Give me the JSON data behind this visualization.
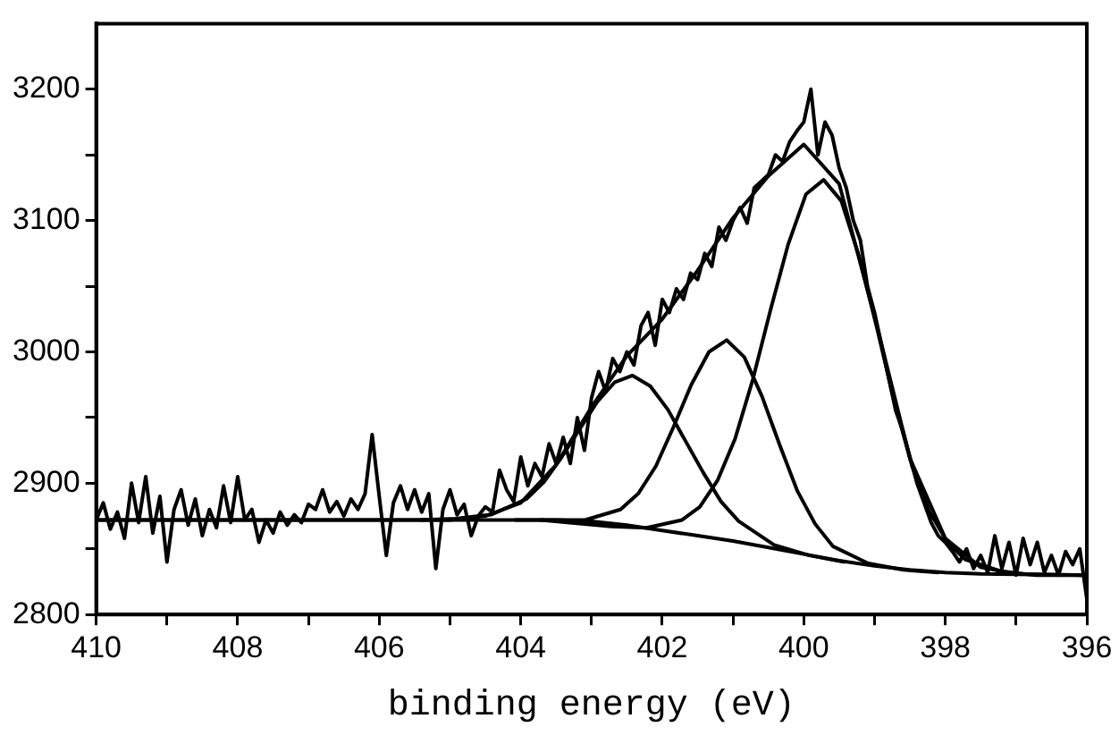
{
  "chart_data": {
    "type": "line",
    "xlabel": "binding energy (eV)",
    "xlim": [
      410,
      396
    ],
    "ylim": [
      2800,
      3250
    ],
    "xticks": [
      410,
      {
        "value": 409,
        "label": null
      },
      408,
      {
        "value": 407,
        "label": null
      },
      406,
      {
        "value": 405,
        "label": null
      },
      404,
      {
        "value": 403,
        "label": null
      },
      402,
      {
        "value": 401,
        "label": null
      },
      400,
      {
        "value": 399,
        "label": null
      },
      398,
      {
        "value": 397,
        "label": null
      },
      396
    ],
    "yticks": [
      2800,
      {
        "value": 2850,
        "label": null
      },
      2900,
      {
        "value": 2950,
        "label": null
      },
      3000,
      {
        "value": 3050,
        "label": null
      },
      3100,
      {
        "value": 3150,
        "label": null
      },
      3200
    ],
    "grid": false,
    "legend": false,
    "marker": "none",
    "line_style": "solid",
    "series": [
      {
        "color": "#000000",
        "x": [
          410.0,
          409.9,
          409.8,
          409.7,
          409.6,
          409.5,
          409.4,
          409.3,
          409.2,
          409.1,
          409.0,
          408.9,
          408.8,
          408.7,
          408.6,
          408.5,
          408.4,
          408.3,
          408.2,
          408.1,
          408.0,
          407.9,
          407.8,
          407.7,
          407.6,
          407.5,
          407.4,
          407.3,
          407.2,
          407.1,
          407.0,
          406.9,
          406.8,
          406.7,
          406.6,
          406.5,
          406.4,
          406.3,
          406.2,
          406.1,
          406.0,
          405.9,
          405.8,
          405.7,
          405.6,
          405.5,
          405.4,
          405.3,
          405.2,
          405.1,
          405.0,
          404.9,
          404.8,
          404.7,
          404.6,
          404.5,
          404.4,
          404.3,
          404.2,
          404.1,
          404.0,
          403.9,
          403.8,
          403.7,
          403.6,
          403.5,
          403.4,
          403.3,
          403.2,
          403.1,
          403.0,
          402.9,
          402.8,
          402.7,
          402.6,
          402.5,
          402.4,
          402.3,
          402.2,
          402.1,
          402.0,
          401.9,
          401.8,
          401.7,
          401.6,
          401.5,
          401.4,
          401.3,
          401.2,
          401.1,
          401.0,
          400.9,
          400.8,
          400.7,
          400.6,
          400.5,
          400.4,
          400.3,
          400.2,
          400.1,
          400.0,
          399.9,
          399.8,
          399.7,
          399.6,
          399.5,
          399.4,
          399.3,
          399.2,
          399.1,
          399.0,
          398.9,
          398.8,
          398.7,
          398.6,
          398.5,
          398.4,
          398.3,
          398.2,
          398.1,
          398.0,
          397.9,
          397.8,
          397.7,
          397.6,
          397.5,
          397.4,
          397.3,
          397.2,
          397.1,
          397.0,
          396.9,
          396.8,
          396.7,
          396.6,
          396.5,
          396.4,
          396.3,
          396.2,
          396.1,
          396.0
        ],
        "values": [
          2872,
          2885,
          2865,
          2878,
          2858,
          2900,
          2870,
          2905,
          2862,
          2890,
          2840,
          2880,
          2895,
          2868,
          2888,
          2860,
          2880,
          2866,
          2898,
          2870,
          2905,
          2872,
          2880,
          2855,
          2872,
          2862,
          2878,
          2868,
          2876,
          2870,
          2884,
          2880,
          2895,
          2878,
          2886,
          2875,
          2888,
          2880,
          2892,
          2937,
          2890,
          2845,
          2885,
          2898,
          2880,
          2895,
          2878,
          2892,
          2835,
          2880,
          2895,
          2876,
          2884,
          2860,
          2875,
          2882,
          2878,
          2910,
          2895,
          2886,
          2920,
          2898,
          2915,
          2905,
          2930,
          2915,
          2935,
          2915,
          2950,
          2925,
          2965,
          2985,
          2970,
          2995,
          2985,
          3000,
          2990,
          3020,
          3030,
          3005,
          3040,
          3030,
          3048,
          3040,
          3060,
          3055,
          3075,
          3065,
          3095,
          3085,
          3100,
          3110,
          3098,
          3125,
          3130,
          3135,
          3150,
          3145,
          3160,
          3168,
          3175,
          3200,
          3150,
          3175,
          3165,
          3140,
          3125,
          3100,
          3085,
          3050,
          3030,
          3005,
          2980,
          2955,
          2940,
          2920,
          2900,
          2885,
          2870,
          2860,
          2855,
          2848,
          2840,
          2850,
          2835,
          2845,
          2832,
          2860,
          2835,
          2855,
          2830,
          2858,
          2838,
          2855,
          2832,
          2845,
          2830,
          2848,
          2838,
          2850,
          2812
        ]
      },
      {
        "color": "#000000",
        "x": [
          410,
          405,
          404.5,
          404,
          403.5,
          403,
          402.5,
          402,
          401.5,
          401,
          400.5,
          400,
          399.5,
          399,
          398.5,
          398,
          397.5,
          397,
          396
        ],
        "values": [
          2872,
          2872,
          2875,
          2885,
          2914,
          2958,
          2997,
          3025,
          3062,
          3102,
          3134,
          3158,
          3128,
          3027,
          2919,
          2858,
          2836,
          2831,
          2830
        ]
      },
      {
        "color": "#000000",
        "x": [
          405.42,
          404.92,
          404.42,
          403.92,
          403.67,
          403.42,
          403.17,
          402.92,
          402.67,
          402.42,
          402.17,
          401.92,
          401.67,
          401.42,
          401.17,
          400.92,
          400.42,
          399.92,
          399.42
        ],
        "values": [
          2872,
          2873,
          2876,
          2888,
          2901,
          2920,
          2941,
          2962,
          2977,
          2982,
          2974,
          2956,
          2932,
          2908,
          2886,
          2871,
          2853,
          2845,
          2840
        ]
      },
      {
        "color": "#000000",
        "x": [
          404.09,
          403.59,
          403.09,
          402.59,
          402.34,
          402.09,
          401.84,
          401.59,
          401.34,
          401.09,
          400.84,
          400.59,
          400.34,
          400.09,
          399.84,
          399.59,
          399.09,
          398.59,
          398.09
        ],
        "values": [
          2872,
          2872,
          2872,
          2880,
          2892,
          2913,
          2943,
          2975,
          3000,
          3009,
          2996,
          2966,
          2929,
          2894,
          2869,
          2852,
          2839,
          2834,
          2832
        ]
      },
      {
        "color": "#000000",
        "x": [
          403.72,
          402.72,
          402.22,
          401.72,
          401.47,
          401.22,
          400.97,
          400.72,
          400.47,
          400.22,
          399.97,
          399.72,
          399.47,
          399.22,
          398.97,
          398.72,
          398.47,
          398.22,
          397.97,
          397.72,
          397.22,
          396.72,
          396
        ],
        "values": [
          2872,
          2867,
          2866,
          2872,
          2882,
          2902,
          2934,
          2979,
          3032,
          3082,
          3120,
          3131,
          3115,
          3073,
          3019,
          2962,
          2913,
          2878,
          2855,
          2842,
          2833,
          2830,
          2830
        ]
      },
      {
        "color": "#000000",
        "x": [
          410,
          403.5,
          403,
          402.5,
          402,
          401.5,
          401,
          400.5,
          400,
          399.5,
          399,
          398.5,
          398,
          397.5,
          396
        ],
        "values": [
          2872,
          2872,
          2871,
          2868,
          2864,
          2860,
          2856,
          2851,
          2846,
          2841,
          2837,
          2834,
          2832,
          2831,
          2830
        ]
      }
    ]
  }
}
